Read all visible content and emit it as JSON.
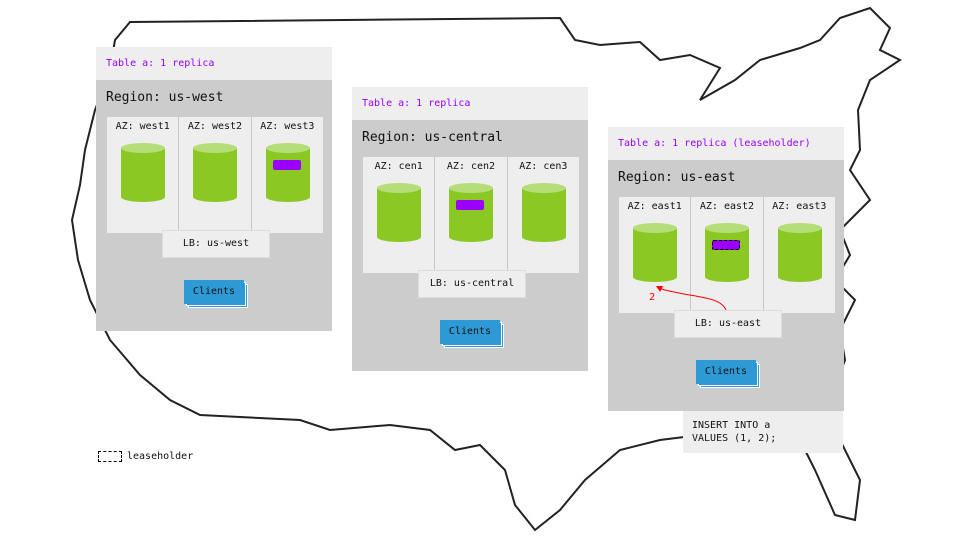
{
  "regions": [
    {
      "table": "Table a: 1 replica",
      "name": "Region: us-west",
      "azs": [
        "AZ: west1",
        "AZ: west2",
        "AZ: west3"
      ],
      "replica_az": 2,
      "leaseholder": false,
      "lb": "LB: us-west",
      "clients": "Clients"
    },
    {
      "table": "Table a: 1 replica",
      "name": "Region: us-central",
      "azs": [
        "AZ: cen1",
        "AZ: cen2",
        "AZ: cen3"
      ],
      "replica_az": 1,
      "leaseholder": false,
      "lb": "LB: us-central",
      "clients": "Clients"
    },
    {
      "table": "Table a: 1 replica (leaseholder)",
      "name": "Region: us-east",
      "azs": [
        "AZ: east1",
        "AZ: east2",
        "AZ: east3"
      ],
      "replica_az": 1,
      "leaseholder": true,
      "lb": "LB: us-east",
      "clients": "Clients"
    }
  ],
  "arrow_label": "2",
  "sql": "INSERT INTO a\nVALUES (1, 2);",
  "legend": "leaseholder",
  "colors": {
    "replica": "#9b00ff",
    "node": "#8cc824",
    "clients": "#2d9ad6",
    "arrow": "#ff0000"
  }
}
